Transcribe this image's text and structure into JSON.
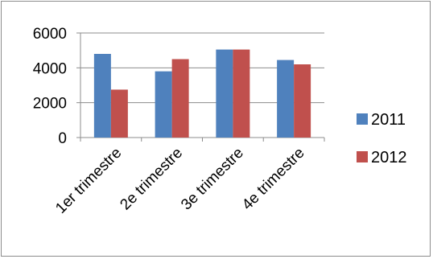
{
  "chart_data": {
    "type": "bar",
    "categories": [
      "1er trimestre",
      "2e trimestre",
      "3e trimestre",
      "4e trimestre"
    ],
    "series": [
      {
        "name": "2011",
        "values": [
          4800,
          3800,
          5050,
          4450
        ],
        "color": "#4f81bd"
      },
      {
        "name": "2012",
        "values": [
          2750,
          4500,
          5050,
          4200
        ],
        "color": "#c0504d"
      }
    ],
    "yticks": [
      0,
      2000,
      4000,
      6000
    ],
    "ylim": [
      0,
      6000
    ],
    "grid": true,
    "legend_position": "right"
  }
}
